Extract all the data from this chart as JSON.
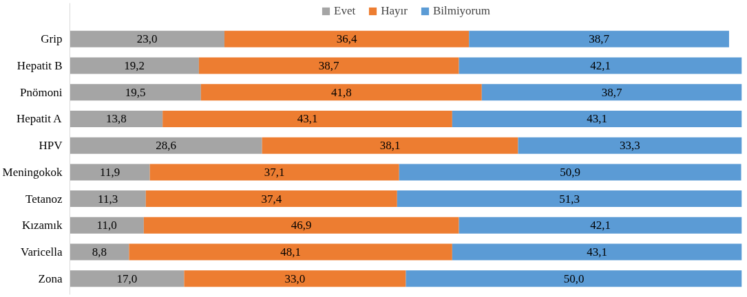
{
  "chart_data": {
    "type": "bar",
    "orientation": "horizontal",
    "stacked": true,
    "grid": false,
    "legend": "top",
    "categories": [
      "Grip",
      "Hepatit B",
      "Pnömoni",
      "Hepatit A",
      "HPV",
      "Meningokok",
      "Tetanoz",
      "Kızamık",
      "Varicella",
      "Zona"
    ],
    "series": [
      {
        "name": "Evet",
        "color": "#a5a5a5",
        "values": [
          23.0,
          19.2,
          19.5,
          13.8,
          28.6,
          11.9,
          11.3,
          11.0,
          8.8,
          17.0
        ],
        "value_labels": [
          "23,0",
          "19,2",
          "19,5",
          "13,8",
          "28,6",
          "11,9",
          "11,3",
          "11,0",
          "8,8",
          "17,0"
        ]
      },
      {
        "name": "Hayır",
        "color": "#ed7d31",
        "values": [
          36.4,
          38.7,
          41.8,
          43.1,
          38.1,
          37.1,
          37.4,
          46.9,
          48.1,
          33.0
        ],
        "value_labels": [
          "36,4",
          "38,7",
          "41,8",
          "43,1",
          "38,1",
          "37,1",
          "37,4",
          "46,9",
          "48,1",
          "33,0"
        ]
      },
      {
        "name": "Bilmiyorum",
        "color": "#5b9bd5",
        "values": [
          38.7,
          42.1,
          38.7,
          43.1,
          33.3,
          50.9,
          51.3,
          42.1,
          43.1,
          50.0
        ],
        "value_labels": [
          "38,7",
          "42,1",
          "38,7",
          "43,1",
          "33,3",
          "50,9",
          "51,3",
          "42,1",
          "43,1",
          "50,0"
        ]
      }
    ]
  }
}
